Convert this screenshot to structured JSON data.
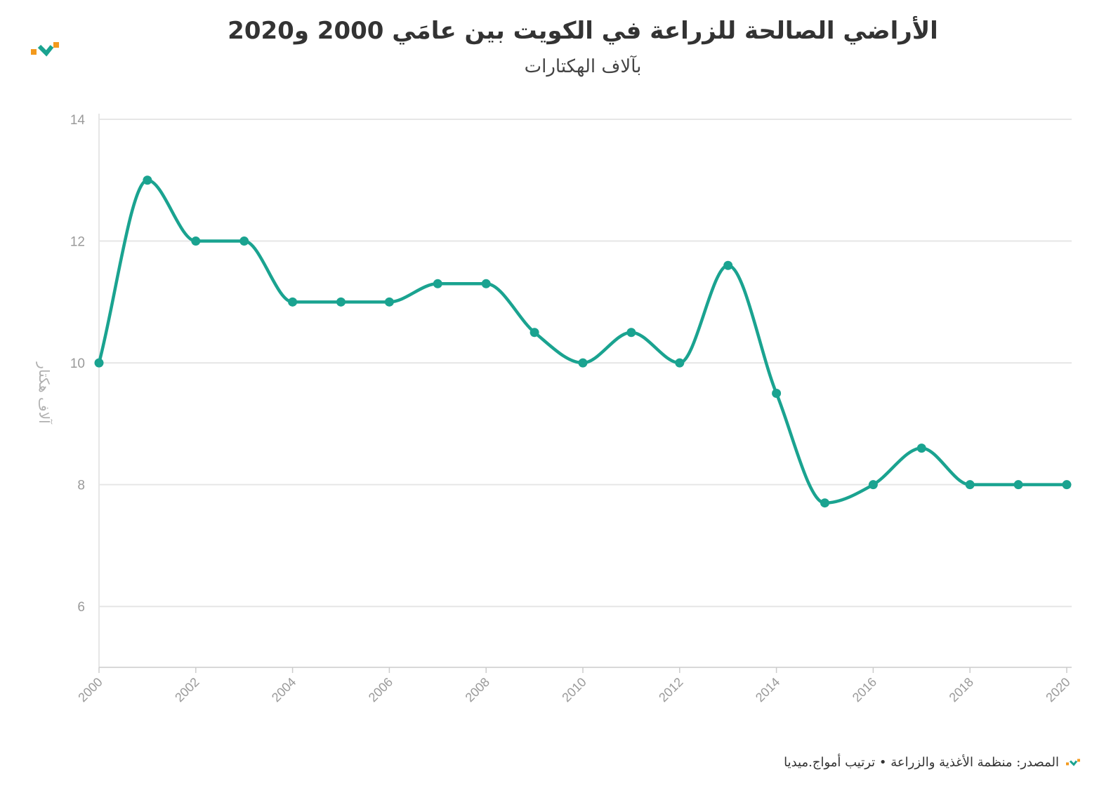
{
  "title": "الأراضي الصالحة للزراعة في الكويت بين عامَي 2000 و2020",
  "subtitle": "بآلاف الهكتارات",
  "footer": {
    "source": "المصدر: منظمة الأغذية والزراعة • ترتيب أمواج.ميديا"
  },
  "colors": {
    "line": "#1aa390",
    "grid": "#e6e6e6",
    "tick_text": "#9a9a9a",
    "logo_orange": "#f39a1e",
    "logo_teal": "#1aa390"
  },
  "chart_data": {
    "type": "line",
    "x": [
      2000,
      2001,
      2002,
      2003,
      2004,
      2005,
      2006,
      2007,
      2008,
      2009,
      2010,
      2011,
      2012,
      2013,
      2014,
      2015,
      2016,
      2017,
      2018,
      2019,
      2020
    ],
    "series": [
      {
        "values": [
          10,
          13,
          12,
          12,
          11,
          11,
          11,
          11.3,
          11.3,
          10.5,
          10,
          10.5,
          10,
          11.6,
          9.5,
          7.7,
          8,
          8.6,
          8,
          8,
          8
        ]
      }
    ],
    "xticks": [
      "2000",
      "2002",
      "2004",
      "2006",
      "2008",
      "2010",
      "2012",
      "2014",
      "2016",
      "2018",
      "2020"
    ],
    "yticks": [
      "6",
      "8",
      "10",
      "12",
      "14"
    ],
    "ylabel": "آلاف هكتار",
    "xlim": [
      2000,
      2020
    ],
    "ylim": [
      5,
      14
    ],
    "grid": true,
    "line_style": "smooth with markers"
  }
}
